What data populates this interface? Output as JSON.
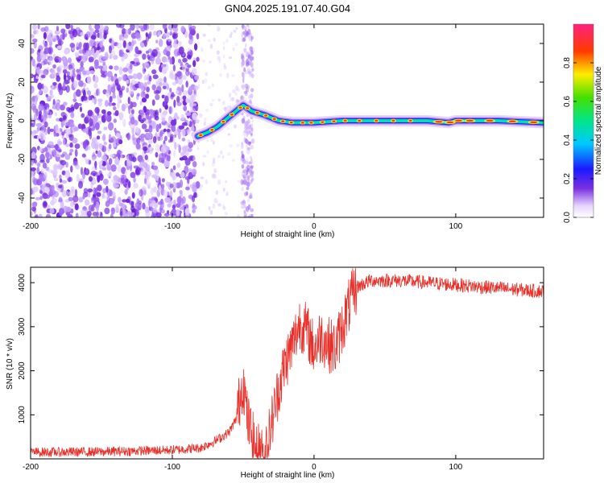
{
  "title": "GN04.2025.191.07.40.G04",
  "chart_data": [
    {
      "type": "heatmap",
      "xlabel": "Height of straight line (km)",
      "ylabel": "Frequency (Hz)",
      "xlim": [
        -200,
        162
      ],
      "ylim": [
        -50,
        50
      ],
      "xticks": [
        -200,
        -100,
        0,
        100
      ],
      "yticks": [
        -40,
        -20,
        0,
        20,
        40
      ],
      "colorbar": {
        "label": "Normalized spectral amplitude",
        "range": [
          0,
          1
        ],
        "ticks": [
          "0.0",
          "0.2",
          "0.4",
          "0.6",
          "0.8"
        ]
      },
      "signal_track": [
        {
          "x": -82,
          "y": -8
        },
        {
          "x": -75,
          "y": -6
        },
        {
          "x": -68,
          "y": -3
        },
        {
          "x": -60,
          "y": 2
        },
        {
          "x": -50,
          "y": 8
        },
        {
          "x": -44,
          "y": 5
        },
        {
          "x": -35,
          "y": 3
        },
        {
          "x": -25,
          "y": 0
        },
        {
          "x": -15,
          "y": -1
        },
        {
          "x": 0,
          "y": -1
        },
        {
          "x": 20,
          "y": 0
        },
        {
          "x": 50,
          "y": 0
        },
        {
          "x": 80,
          "y": 0
        },
        {
          "x": 95,
          "y": -1
        },
        {
          "x": 100,
          "y": 0
        },
        {
          "x": 130,
          "y": 0
        },
        {
          "x": 162,
          "y": -1
        }
      ]
    },
    {
      "type": "line",
      "xlabel": "Height of straight line (km)",
      "ylabel": "SNR (10 * v/v)",
      "xlim": [
        -200,
        162
      ],
      "ylim": [
        0,
        4350
      ],
      "xticks": [
        -200,
        -100,
        0,
        100
      ],
      "yticks": [
        1000,
        2000,
        3000,
        4000
      ],
      "series": [
        {
          "color": "#e8302a",
          "points": [
            {
              "x": -200,
              "y": 150
            },
            {
              "x": -150,
              "y": 160
            },
            {
              "x": -100,
              "y": 200
            },
            {
              "x": -80,
              "y": 250
            },
            {
              "x": -70,
              "y": 400
            },
            {
              "x": -60,
              "y": 600
            },
            {
              "x": -55,
              "y": 900
            },
            {
              "x": -50,
              "y": 1800
            },
            {
              "x": -47,
              "y": 900
            },
            {
              "x": -42,
              "y": 300
            },
            {
              "x": -35,
              "y": 100
            },
            {
              "x": -30,
              "y": 800
            },
            {
              "x": -25,
              "y": 1600
            },
            {
              "x": -20,
              "y": 2200
            },
            {
              "x": -15,
              "y": 2600
            },
            {
              "x": -10,
              "y": 3100
            },
            {
              "x": -5,
              "y": 2900
            },
            {
              "x": 0,
              "y": 2500
            },
            {
              "x": 5,
              "y": 2800
            },
            {
              "x": 10,
              "y": 2600
            },
            {
              "x": 15,
              "y": 2500
            },
            {
              "x": 20,
              "y": 3000
            },
            {
              "x": 25,
              "y": 3500
            },
            {
              "x": 30,
              "y": 3900
            },
            {
              "x": 40,
              "y": 4050
            },
            {
              "x": 60,
              "y": 4050
            },
            {
              "x": 80,
              "y": 4000
            },
            {
              "x": 100,
              "y": 3950
            },
            {
              "x": 120,
              "y": 3900
            },
            {
              "x": 140,
              "y": 3850
            },
            {
              "x": 162,
              "y": 3800
            }
          ]
        }
      ]
    }
  ]
}
